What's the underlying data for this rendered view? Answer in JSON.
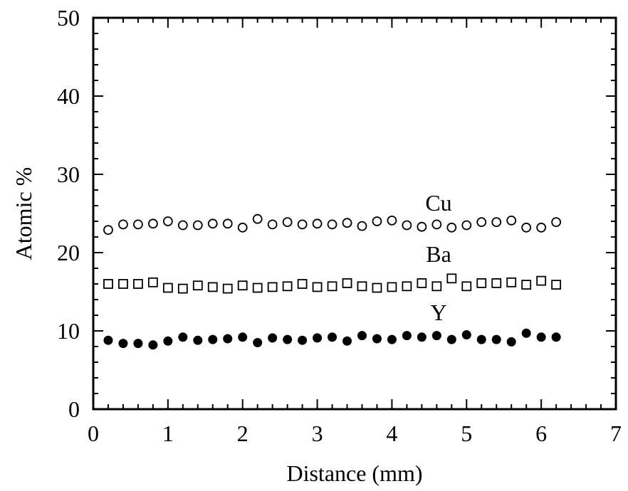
{
  "chart_data": {
    "type": "scatter",
    "title": "",
    "xlabel": "Distance (mm)",
    "ylabel": "Atomic %",
    "xlim": [
      0,
      7
    ],
    "ylim": [
      0,
      50
    ],
    "x_ticks": [
      "0",
      "1",
      "2",
      "3",
      "4",
      "5",
      "6",
      "7"
    ],
    "y_ticks": [
      "0",
      "10",
      "20",
      "30",
      "40",
      "50"
    ],
    "grid": false,
    "legend": "none; series labeled inline above each series",
    "x": [
      0.2,
      0.4,
      0.6,
      0.8,
      1.0,
      1.2,
      1.4,
      1.6,
      1.8,
      2.0,
      2.2,
      2.4,
      2.6,
      2.8,
      3.0,
      3.2,
      3.4,
      3.6,
      3.8,
      4.0,
      4.2,
      4.4,
      4.6,
      4.8,
      5.0,
      5.2,
      5.4,
      5.6,
      5.8,
      6.0,
      6.2
    ],
    "series": [
      {
        "name": "Cu",
        "marker": "open-circle",
        "values": [
          22.9,
          23.6,
          23.6,
          23.7,
          24.0,
          23.5,
          23.5,
          23.7,
          23.7,
          23.2,
          24.3,
          23.6,
          23.9,
          23.6,
          23.7,
          23.6,
          23.8,
          23.4,
          24.0,
          24.1,
          23.5,
          23.3,
          23.6,
          23.2,
          23.5,
          23.9,
          23.9,
          24.1,
          23.2,
          23.2,
          23.9
        ]
      },
      {
        "name": "Ba",
        "marker": "open-square",
        "values": [
          16.0,
          16.0,
          16.0,
          16.2,
          15.5,
          15.4,
          15.8,
          15.6,
          15.4,
          15.8,
          15.5,
          15.6,
          15.7,
          16.0,
          15.6,
          15.7,
          16.1,
          15.7,
          15.5,
          15.6,
          15.7,
          16.1,
          15.7,
          16.7,
          15.7,
          16.1,
          16.1,
          16.2,
          15.9,
          16.4,
          15.9
        ]
      },
      {
        "name": "Y",
        "marker": "filled-circle",
        "values": [
          8.8,
          8.4,
          8.4,
          8.2,
          8.7,
          9.2,
          8.8,
          8.9,
          9.0,
          9.2,
          8.5,
          9.1,
          8.9,
          8.8,
          9.1,
          9.2,
          8.7,
          9.4,
          9.0,
          8.9,
          9.4,
          9.2,
          9.4,
          8.9,
          9.5,
          8.9,
          8.9,
          8.6,
          9.7,
          9.2,
          9.2
        ]
      }
    ]
  }
}
